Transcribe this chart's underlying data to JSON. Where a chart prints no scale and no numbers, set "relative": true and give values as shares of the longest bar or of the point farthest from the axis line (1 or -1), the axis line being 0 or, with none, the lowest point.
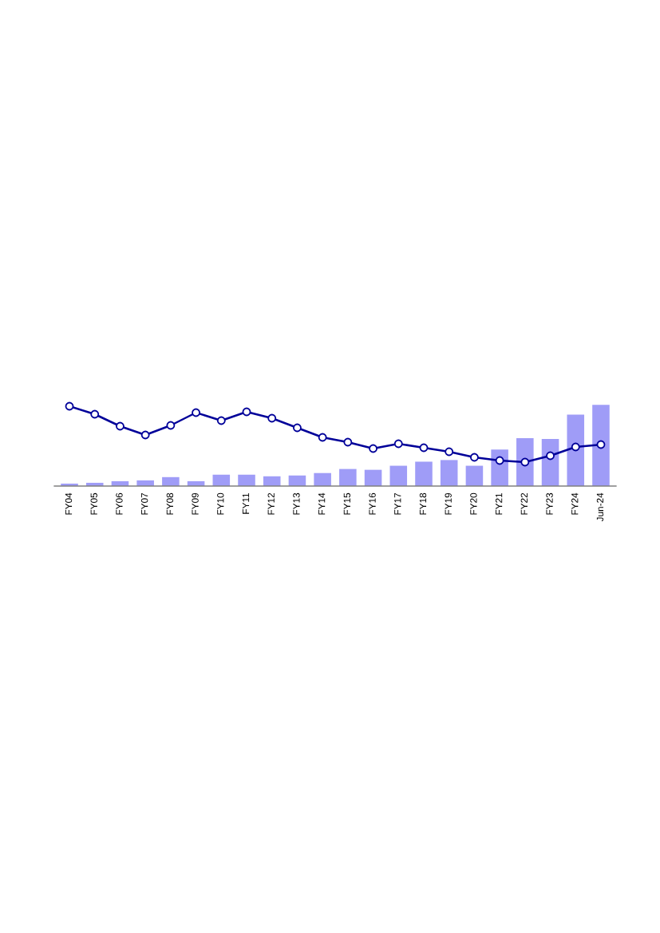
{
  "chart_data": {
    "type": "bar",
    "relative": true,
    "grid": false,
    "categories": [
      "FY04",
      "FY05",
      "FY06",
      "FY07",
      "FY08",
      "FY09",
      "FY10",
      "FY11",
      "FY12",
      "FY13",
      "FY14",
      "FY15",
      "FY16",
      "FY17",
      "FY18",
      "FY19",
      "FY20",
      "FY21",
      "FY22",
      "FY23",
      "FY24",
      "Jun-24"
    ],
    "series": [
      {
        "color": "#9f9cf7",
        "values": [
          0.03,
          0.04,
          0.06,
          0.07,
          0.11,
          0.06,
          0.14,
          0.14,
          0.12,
          0.13,
          0.16,
          0.21,
          0.2,
          0.25,
          0.3,
          0.32,
          0.25,
          0.45,
          0.59,
          0.58,
          0.88,
          1.0
        ]
      },
      {
        "type": "line",
        "axis": "y2",
        "color": "#000099",
        "marker": "circle",
        "line_style": "solid",
        "values": [
          1.0,
          0.9,
          0.75,
          0.64,
          0.76,
          0.92,
          0.82,
          0.93,
          0.85,
          0.73,
          0.61,
          0.55,
          0.47,
          0.53,
          0.48,
          0.43,
          0.36,
          0.32,
          0.3,
          0.38,
          0.49,
          0.52
        ]
      }
    ]
  }
}
